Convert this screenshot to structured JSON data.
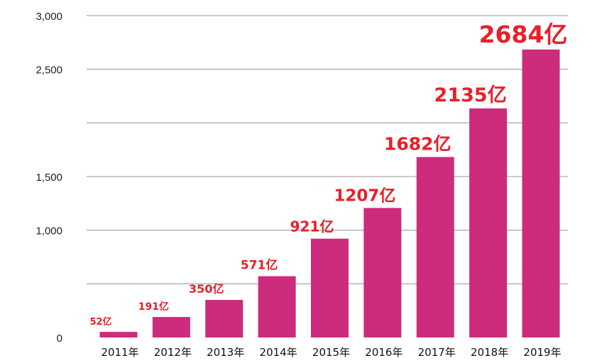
{
  "chart_data": {
    "type": "bar",
    "categories": [
      "2011年",
      "2012年",
      "2013年",
      "2014年",
      "2015年",
      "2016年",
      "2017年",
      "2018年",
      "2019年"
    ],
    "values": [
      52,
      191,
      350,
      571,
      921,
      1207,
      1682,
      2135,
      2684
    ],
    "data_labels": [
      "52亿",
      "191亿",
      "350亿",
      "571亿",
      "921亿",
      "1207亿",
      "1682亿",
      "2135亿",
      "2684亿"
    ],
    "title": "",
    "xlabel": "",
    "ylabel": "",
    "ylim": [
      0,
      3000
    ],
    "yticks": [
      0,
      500,
      1000,
      1500,
      2000,
      2500,
      3000
    ],
    "ytick_labels": [
      "0",
      "",
      "1,000",
      "1,500",
      "",
      "2,500",
      "3,000"
    ],
    "grid": true,
    "legend": "none",
    "colors": {
      "bar": "#cd2b7c",
      "data_label": "#e8202a",
      "grid": "#b9b9b9"
    }
  }
}
